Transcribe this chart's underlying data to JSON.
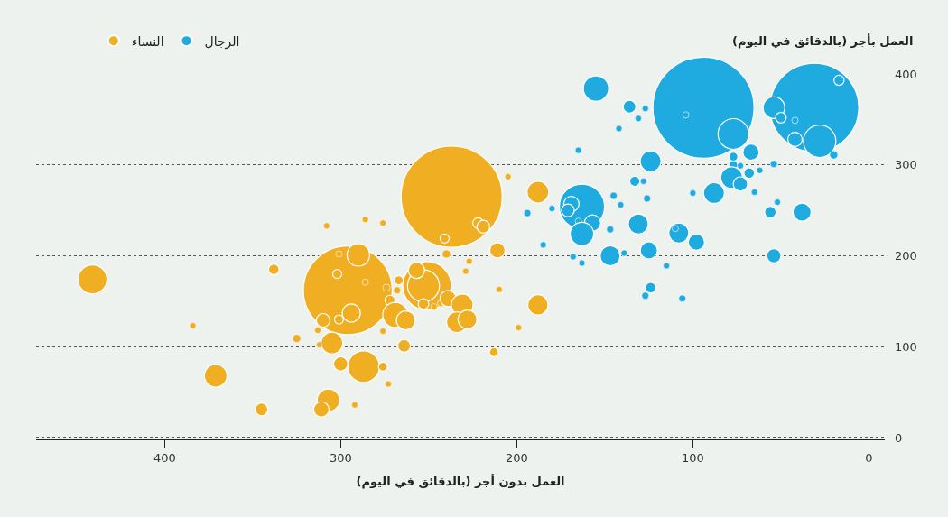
{
  "chart_data": {
    "type": "bubble",
    "xlabel": "العمل بدون أجر (بالدقائق في اليوم)",
    "ylabel": "العمل بأجر (بالدقائق في اليوم)",
    "xlim": [
      473,
      -9
    ],
    "xticks": [
      400,
      300,
      200,
      100,
      0
    ],
    "ylim": [
      -2,
      400
    ],
    "yticks": [
      0,
      100,
      200,
      300,
      400
    ],
    "grid": "y",
    "legend": "top left",
    "series": [
      {
        "name": "النساء",
        "color": "#f0ae22",
        "x": [
          237,
          296,
          290,
          302,
          301,
          286,
          294,
          310,
          301,
          338,
          308,
          286,
          276,
          274,
          267,
          268,
          272,
          269,
          263,
          276,
          313,
          325,
          312,
          305,
          264,
          300,
          287,
          276,
          273,
          307,
          311,
          292,
          251,
          253,
          257,
          253,
          247,
          243,
          239,
          231,
          234,
          228,
          241,
          222,
          219,
          205,
          211,
          240,
          227,
          229,
          210,
          199,
          213,
          188,
          188,
          441,
          384,
          371,
          345
        ],
        "values": [
          265,
          162,
          201,
          180,
          202,
          171,
          137,
          129,
          130,
          185,
          233,
          240,
          236,
          165,
          173,
          162,
          151,
          135,
          129,
          117,
          118,
          109,
          102,
          104,
          101,
          81,
          78,
          78,
          59,
          41,
          31,
          36,
          167,
          167,
          184,
          147,
          144,
          148,
          153,
          146,
          127,
          130,
          219,
          236,
          232,
          287,
          206,
          202,
          194,
          183,
          163,
          121,
          94,
          270,
          146,
          174,
          123,
          68,
          31
        ],
        "sizes": [
          1.0,
          0.77,
          0.05,
          0.008,
          0.004,
          0.004,
          0.032,
          0.018,
          0.008,
          0.011,
          0.004,
          0.004,
          0.004,
          0.005,
          0.008,
          0.005,
          0.01,
          0.062,
          0.035,
          0.004,
          0.004,
          0.0065,
          0.004,
          0.046,
          0.016,
          0.02,
          0.098,
          0.008,
          0.004,
          0.05,
          0.023,
          0.004,
          0.23,
          0.1,
          0.026,
          0.011,
          0.004,
          0.005,
          0.026,
          0.046,
          0.042,
          0.035,
          0.008,
          0.011,
          0.016,
          0.004,
          0.023,
          0.0065,
          0.004,
          0.004,
          0.004,
          0.004,
          0.008,
          0.046,
          0.04,
          0.082,
          0.004,
          0.05,
          0.016
        ]
      },
      {
        "name": "الرجال",
        "color": "#1fabe0",
        "x": [
          94,
          31,
          155,
          136,
          127,
          131,
          142,
          104,
          77,
          54,
          50,
          42,
          17,
          42,
          28,
          20,
          67,
          77,
          77,
          73,
          54,
          62,
          68,
          78,
          73,
          65,
          52,
          56,
          38,
          54,
          124,
          165,
          133,
          128,
          126,
          88,
          100,
          145,
          141,
          163,
          169,
          171,
          157,
          165,
          163,
          180,
          194,
          147,
          131,
          108,
          110,
          98,
          185,
          147,
          139,
          125,
          168,
          163,
          115,
          124,
          127,
          106
        ],
        "values": [
          363,
          363,
          384,
          364,
          362,
          351,
          340,
          355,
          334,
          363,
          352,
          349,
          393,
          328,
          326,
          311,
          314,
          309,
          300,
          299,
          301,
          294,
          291,
          286,
          279,
          270,
          259,
          248,
          248,
          200,
          304,
          316,
          282,
          282,
          263,
          269,
          269,
          266,
          256,
          254,
          257,
          250,
          236,
          238,
          224,
          252,
          247,
          229,
          235,
          225,
          230,
          215,
          212,
          200,
          203,
          206,
          199,
          192,
          189,
          165,
          156,
          153
        ],
        "sizes": [
          1.0,
          0.77,
          0.063,
          0.016,
          0.004,
          0.004,
          0.004,
          0.004,
          0.092,
          0.046,
          0.011,
          0.004,
          0.01,
          0.02,
          0.103,
          0.0065,
          0.026,
          0.008,
          0.0065,
          0.004,
          0.005,
          0.004,
          0.011,
          0.046,
          0.02,
          0.004,
          0.004,
          0.013,
          0.032,
          0.02,
          0.042,
          0.004,
          0.01,
          0.004,
          0.005,
          0.042,
          0.004,
          0.005,
          0.004,
          0.2,
          0.023,
          0.016,
          0.026,
          0.004,
          0.054,
          0.004,
          0.005,
          0.005,
          0.039,
          0.039,
          0.004,
          0.026,
          0.004,
          0.039,
          0.004,
          0.029,
          0.004,
          0.004,
          0.004,
          0.011,
          0.005,
          0.005
        ]
      }
    ]
  }
}
